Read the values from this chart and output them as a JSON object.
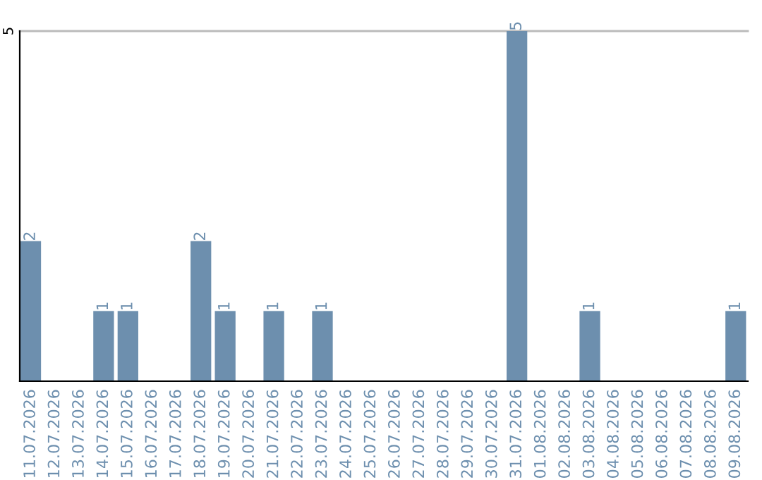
{
  "chart_data": {
    "type": "bar",
    "categories": [
      "11.07.2026",
      "12.07.2026",
      "13.07.2026",
      "14.07.2026",
      "15.07.2026",
      "16.07.2026",
      "17.07.2026",
      "18.07.2026",
      "19.07.2026",
      "20.07.2026",
      "21.07.2026",
      "22.07.2026",
      "23.07.2026",
      "24.07.2026",
      "25.07.2026",
      "26.07.2026",
      "27.07.2026",
      "28.07.2026",
      "29.07.2026",
      "30.07.2026",
      "31.07.2026",
      "01.08.2026",
      "02.08.2026",
      "03.08.2026",
      "04.08.2026",
      "05.08.2026",
      "06.08.2026",
      "07.08.2026",
      "08.08.2026",
      "09.08.2026"
    ],
    "values": [
      2,
      0,
      0,
      1,
      1,
      0,
      0,
      2,
      1,
      0,
      1,
      0,
      1,
      0,
      0,
      0,
      0,
      0,
      0,
      0,
      5,
      0,
      0,
      1,
      0,
      0,
      0,
      0,
      0,
      1
    ],
    "value_labels": [
      "2",
      null,
      null,
      "1",
      "1",
      null,
      null,
      "2",
      "1",
      null,
      "1",
      null,
      "1",
      null,
      null,
      null,
      null,
      null,
      null,
      null,
      "5",
      null,
      null,
      "1",
      null,
      null,
      null,
      null,
      null,
      "1"
    ],
    "color": "#6d8fae",
    "ylim": [
      0,
      5
    ],
    "yticks": [
      5
    ],
    "ref_lines": [
      {
        "axis": "y",
        "value": 5,
        "color": "#bbbbbb"
      }
    ]
  }
}
